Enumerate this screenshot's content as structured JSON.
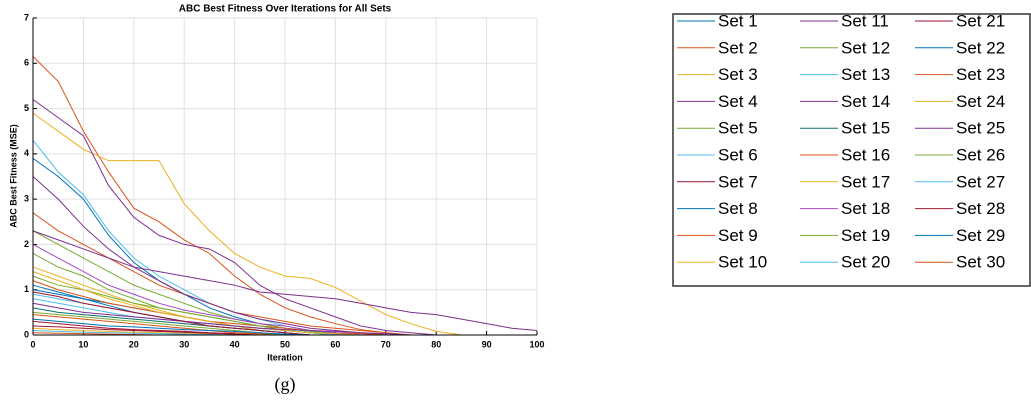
{
  "chart_data": {
    "type": "line",
    "title": "ABC Best Fitness Over Iterations for All Sets",
    "xlabel": "Iteration",
    "ylabel": "ABC Best Fitness (MSE)",
    "x": [
      0,
      5,
      10,
      15,
      20,
      25,
      30,
      35,
      40,
      45,
      50,
      55,
      60,
      65,
      70,
      75,
      80,
      85,
      90,
      95,
      100
    ],
    "xlim": [
      0,
      100
    ],
    "xticks": [
      0,
      10,
      20,
      30,
      40,
      50,
      60,
      70,
      80,
      90,
      100
    ],
    "ylim": [
      0,
      7
    ],
    "yticks": [
      0,
      1,
      2,
      3,
      4,
      5,
      6,
      7
    ],
    "grid": true,
    "series": [
      {
        "name": "Set 1",
        "color": "#0072BD",
        "values": [
          3.9,
          3.5,
          3.0,
          2.2,
          1.6,
          1.2,
          0.9,
          0.6,
          0.4,
          0.25,
          0.15,
          0.08,
          0.03,
          0,
          0,
          0,
          0,
          0,
          0,
          0,
          0
        ]
      },
      {
        "name": "Set 2",
        "color": "#D95319",
        "values": [
          6.15,
          5.6,
          4.5,
          3.6,
          2.8,
          2.5,
          2.1,
          1.8,
          1.3,
          0.9,
          0.6,
          0.4,
          0.25,
          0.12,
          0.05,
          0,
          0,
          0,
          0,
          0,
          0
        ]
      },
      {
        "name": "Set 3",
        "color": "#EDB120",
        "values": [
          4.9,
          4.5,
          4.1,
          3.85,
          3.85,
          3.85,
          2.9,
          2.3,
          1.8,
          1.5,
          1.3,
          1.25,
          1.05,
          0.75,
          0.45,
          0.25,
          0.08,
          0,
          0,
          0,
          0
        ]
      },
      {
        "name": "Set 4",
        "color": "#7E2F8E",
        "values": [
          5.2,
          4.8,
          4.4,
          3.3,
          2.6,
          2.2,
          2.0,
          1.9,
          1.6,
          1.1,
          0.8,
          0.6,
          0.4,
          0.2,
          0.1,
          0.05,
          0,
          0,
          0,
          0,
          0
        ]
      },
      {
        "name": "Set 5",
        "color": "#77AC30",
        "values": [
          1.8,
          1.5,
          1.3,
          1.0,
          0.8,
          0.6,
          0.5,
          0.4,
          0.3,
          0.2,
          0.1,
          0.05,
          0,
          0,
          0,
          0,
          0,
          0,
          0,
          0,
          0
        ]
      },
      {
        "name": "Set 6",
        "color": "#4DBEEE",
        "values": [
          4.3,
          3.6,
          3.1,
          2.3,
          1.7,
          1.3,
          1.0,
          0.7,
          0.5,
          0.35,
          0.2,
          0.1,
          0.05,
          0,
          0,
          0,
          0,
          0,
          0,
          0,
          0
        ]
      },
      {
        "name": "Set 7",
        "color": "#A2142F",
        "values": [
          0.3,
          0.25,
          0.2,
          0.15,
          0.12,
          0.1,
          0.08,
          0.05,
          0.03,
          0.02,
          0,
          0,
          0,
          0,
          0,
          0,
          0,
          0,
          0,
          0,
          0
        ]
      },
      {
        "name": "Set 8",
        "color": "#0072BD",
        "values": [
          1.0,
          0.9,
          0.8,
          0.7,
          0.6,
          0.5,
          0.4,
          0.3,
          0.2,
          0.15,
          0.1,
          0.05,
          0,
          0,
          0,
          0,
          0,
          0,
          0,
          0,
          0
        ]
      },
      {
        "name": "Set 9",
        "color": "#D95319",
        "values": [
          2.7,
          2.3,
          2.0,
          1.7,
          1.4,
          1.1,
          0.9,
          0.7,
          0.5,
          0.4,
          0.3,
          0.2,
          0.15,
          0.1,
          0.05,
          0,
          0,
          0,
          0,
          0,
          0
        ]
      },
      {
        "name": "Set 10",
        "color": "#EDB120",
        "values": [
          1.5,
          1.3,
          1.1,
          0.9,
          0.7,
          0.55,
          0.4,
          0.3,
          0.2,
          0.1,
          0.05,
          0,
          0,
          0,
          0,
          0,
          0,
          0,
          0,
          0,
          0
        ]
      },
      {
        "name": "Set 11",
        "color": "#7E2F8E",
        "values": [
          3.5,
          3.0,
          2.4,
          1.9,
          1.5,
          1.2,
          0.9,
          0.7,
          0.5,
          0.35,
          0.25,
          0.15,
          0.1,
          0.05,
          0,
          0,
          0,
          0,
          0,
          0,
          0
        ]
      },
      {
        "name": "Set 12",
        "color": "#77AC30",
        "values": [
          2.3,
          2.0,
          1.7,
          1.4,
          1.1,
          0.9,
          0.7,
          0.5,
          0.35,
          0.25,
          0.15,
          0.08,
          0.03,
          0,
          0,
          0,
          0,
          0,
          0,
          0,
          0
        ]
      },
      {
        "name": "Set 13",
        "color": "#4DBEEE",
        "values": [
          0.9,
          0.8,
          0.7,
          0.6,
          0.5,
          0.4,
          0.3,
          0.25,
          0.2,
          0.15,
          0.1,
          0.05,
          0.02,
          0,
          0,
          0,
          0,
          0,
          0,
          0,
          0
        ]
      },
      {
        "name": "Set 14",
        "color": "#7E2F8E",
        "values": [
          2.3,
          2.1,
          1.9,
          1.7,
          1.5,
          1.4,
          1.3,
          1.2,
          1.1,
          0.95,
          0.9,
          0.85,
          0.8,
          0.7,
          0.6,
          0.5,
          0.45,
          0.35,
          0.25,
          0.15,
          0.1
        ]
      },
      {
        "name": "Set 15",
        "color": "#0E6E73",
        "values": [
          0.6,
          0.5,
          0.45,
          0.4,
          0.35,
          0.3,
          0.25,
          0.2,
          0.15,
          0.1,
          0.05,
          0,
          0,
          0,
          0,
          0,
          0,
          0,
          0,
          0,
          0
        ]
      },
      {
        "name": "Set 16",
        "color": "#D95319",
        "values": [
          1.2,
          1.0,
          0.85,
          0.7,
          0.6,
          0.5,
          0.4,
          0.3,
          0.25,
          0.2,
          0.15,
          0.1,
          0.05,
          0.03,
          0,
          0,
          0,
          0,
          0,
          0,
          0
        ]
      },
      {
        "name": "Set 17",
        "color": "#EDB120",
        "values": [
          0.15,
          0.12,
          0.1,
          0.08,
          0.06,
          0.05,
          0.04,
          0.03,
          0.02,
          0.01,
          0,
          0,
          0,
          0,
          0,
          0,
          0,
          0,
          0,
          0,
          0
        ]
      },
      {
        "name": "Set 18",
        "color": "#A349C8",
        "values": [
          2.0,
          1.7,
          1.4,
          1.1,
          0.9,
          0.7,
          0.55,
          0.45,
          0.35,
          0.25,
          0.2,
          0.1,
          0.05,
          0,
          0,
          0,
          0,
          0,
          0,
          0,
          0
        ]
      },
      {
        "name": "Set 19",
        "color": "#77AC30",
        "values": [
          1.3,
          1.1,
          1.0,
          0.85,
          0.7,
          0.6,
          0.5,
          0.4,
          0.3,
          0.2,
          0.1,
          0.05,
          0,
          0,
          0,
          0,
          0,
          0,
          0,
          0,
          0
        ]
      },
      {
        "name": "Set 20",
        "color": "#4DBEEE",
        "values": [
          0.8,
          0.7,
          0.6,
          0.5,
          0.4,
          0.35,
          0.3,
          0.25,
          0.2,
          0.15,
          0.1,
          0.05,
          0,
          0,
          0,
          0,
          0,
          0,
          0,
          0,
          0
        ]
      },
      {
        "name": "Set 21",
        "color": "#A2142F",
        "values": [
          0.2,
          0.18,
          0.15,
          0.12,
          0.1,
          0.08,
          0.06,
          0.04,
          0.02,
          0,
          0,
          0,
          0,
          0,
          0,
          0,
          0,
          0,
          0,
          0,
          0
        ]
      },
      {
        "name": "Set 22",
        "color": "#0072BD",
        "values": [
          1.1,
          0.95,
          0.8,
          0.65,
          0.5,
          0.4,
          0.3,
          0.2,
          0.15,
          0.1,
          0.05,
          0,
          0,
          0,
          0,
          0,
          0,
          0,
          0,
          0,
          0
        ]
      },
      {
        "name": "Set 23",
        "color": "#D95319",
        "values": [
          0.45,
          0.4,
          0.35,
          0.3,
          0.25,
          0.2,
          0.15,
          0.1,
          0.05,
          0.03,
          0,
          0,
          0,
          0,
          0,
          0,
          0,
          0,
          0,
          0,
          0
        ]
      },
      {
        "name": "Set 24",
        "color": "#EDB120",
        "values": [
          1.4,
          1.2,
          1.0,
          0.8,
          0.65,
          0.5,
          0.4,
          0.3,
          0.2,
          0.15,
          0.1,
          0.05,
          0.03,
          0,
          0,
          0,
          0,
          0,
          0,
          0,
          0
        ]
      },
      {
        "name": "Set 25",
        "color": "#7E2F8E",
        "values": [
          0.7,
          0.6,
          0.5,
          0.45,
          0.4,
          0.35,
          0.3,
          0.25,
          0.2,
          0.15,
          0.12,
          0.1,
          0.08,
          0.05,
          0.03,
          0,
          0,
          0,
          0,
          0,
          0
        ]
      },
      {
        "name": "Set 26",
        "color": "#77AC30",
        "values": [
          0.5,
          0.45,
          0.4,
          0.35,
          0.3,
          0.25,
          0.2,
          0.15,
          0.1,
          0.05,
          0,
          0,
          0,
          0,
          0,
          0,
          0,
          0,
          0,
          0,
          0
        ]
      },
      {
        "name": "Set 27",
        "color": "#4DBEEE",
        "values": [
          0.1,
          0.08,
          0.06,
          0.05,
          0.04,
          0.03,
          0.02,
          0.01,
          0,
          0,
          0,
          0,
          0,
          0,
          0,
          0,
          0,
          0,
          0,
          0,
          0
        ]
      },
      {
        "name": "Set 28",
        "color": "#A2142F",
        "values": [
          0.95,
          0.85,
          0.7,
          0.6,
          0.5,
          0.4,
          0.3,
          0.2,
          0.15,
          0.1,
          0.05,
          0,
          0,
          0,
          0,
          0,
          0,
          0,
          0,
          0,
          0
        ]
      },
      {
        "name": "Set 29",
        "color": "#0072BD",
        "values": [
          0.35,
          0.3,
          0.25,
          0.2,
          0.18,
          0.15,
          0.12,
          0.1,
          0.08,
          0.05,
          0.02,
          0,
          0,
          0,
          0,
          0,
          0,
          0,
          0,
          0,
          0
        ]
      },
      {
        "name": "Set 30",
        "color": "#D95319",
        "values": [
          0.05,
          0.04,
          0.03,
          0.02,
          0.01,
          0,
          0,
          0,
          0,
          0,
          0,
          0,
          0,
          0,
          0,
          0,
          0,
          0,
          0,
          0,
          0
        ]
      }
    ]
  },
  "caption": "(g)"
}
